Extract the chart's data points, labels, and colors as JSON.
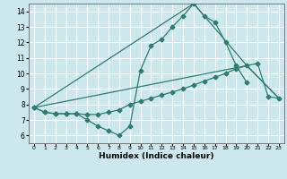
{
  "xlabel": "Humidex (Indice chaleur)",
  "bg_color": "#cce8ec",
  "grid_color": "#ffffff",
  "line_color": "#2e7d6e",
  "xlim": [
    -0.5,
    23.5
  ],
  "ylim": [
    5.5,
    14.5
  ],
  "xticks": [
    0,
    1,
    2,
    3,
    4,
    5,
    6,
    7,
    8,
    9,
    10,
    11,
    12,
    13,
    14,
    15,
    16,
    17,
    18,
    19,
    20,
    21,
    22,
    23
  ],
  "yticks": [
    6,
    7,
    8,
    9,
    10,
    11,
    12,
    13,
    14
  ],
  "line1_x": [
    0,
    1,
    2,
    3,
    4,
    5,
    6,
    7,
    8,
    9,
    10,
    11,
    12,
    13,
    14,
    15,
    16,
    17,
    18,
    19,
    20
  ],
  "line1_y": [
    7.8,
    7.5,
    7.4,
    7.4,
    7.4,
    7.0,
    6.6,
    6.3,
    6.0,
    6.6,
    10.2,
    11.8,
    12.2,
    13.0,
    13.7,
    14.5,
    13.7,
    13.3,
    12.0,
    10.5,
    9.4
  ],
  "line2_x": [
    0,
    1,
    2,
    3,
    4,
    5,
    6,
    7,
    8,
    9,
    10,
    11,
    12,
    13,
    14,
    15,
    16,
    17,
    18,
    19,
    20,
    21,
    22,
    23
  ],
  "line2_y": [
    7.8,
    7.5,
    7.4,
    7.4,
    7.4,
    7.35,
    7.35,
    7.5,
    7.65,
    8.0,
    8.2,
    8.4,
    8.6,
    8.8,
    9.0,
    9.25,
    9.5,
    9.75,
    10.0,
    10.3,
    10.5,
    10.65,
    8.5,
    8.4
  ],
  "line3_x": [
    0,
    20,
    23
  ],
  "line3_y": [
    7.8,
    10.5,
    8.4
  ],
  "line4_x": [
    0,
    15,
    20,
    23
  ],
  "line4_y": [
    7.8,
    14.5,
    10.5,
    8.4
  ]
}
